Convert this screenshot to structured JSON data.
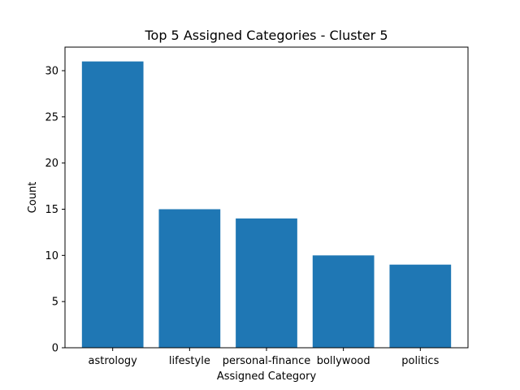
{
  "chart_data": {
    "type": "bar",
    "title": "Top 5 Assigned Categories - Cluster 5",
    "xlabel": "Assigned Category",
    "ylabel": "Count",
    "categories": [
      "astrology",
      "lifestyle",
      "personal-finance",
      "bollywood",
      "politics"
    ],
    "values": [
      31,
      15,
      14,
      10,
      9
    ],
    "ylim": [
      0,
      32.55
    ],
    "yticks": [
      0,
      5,
      10,
      15,
      20,
      25,
      30
    ],
    "grid": false,
    "legend": "none",
    "bar_color": "#1f77b4"
  }
}
